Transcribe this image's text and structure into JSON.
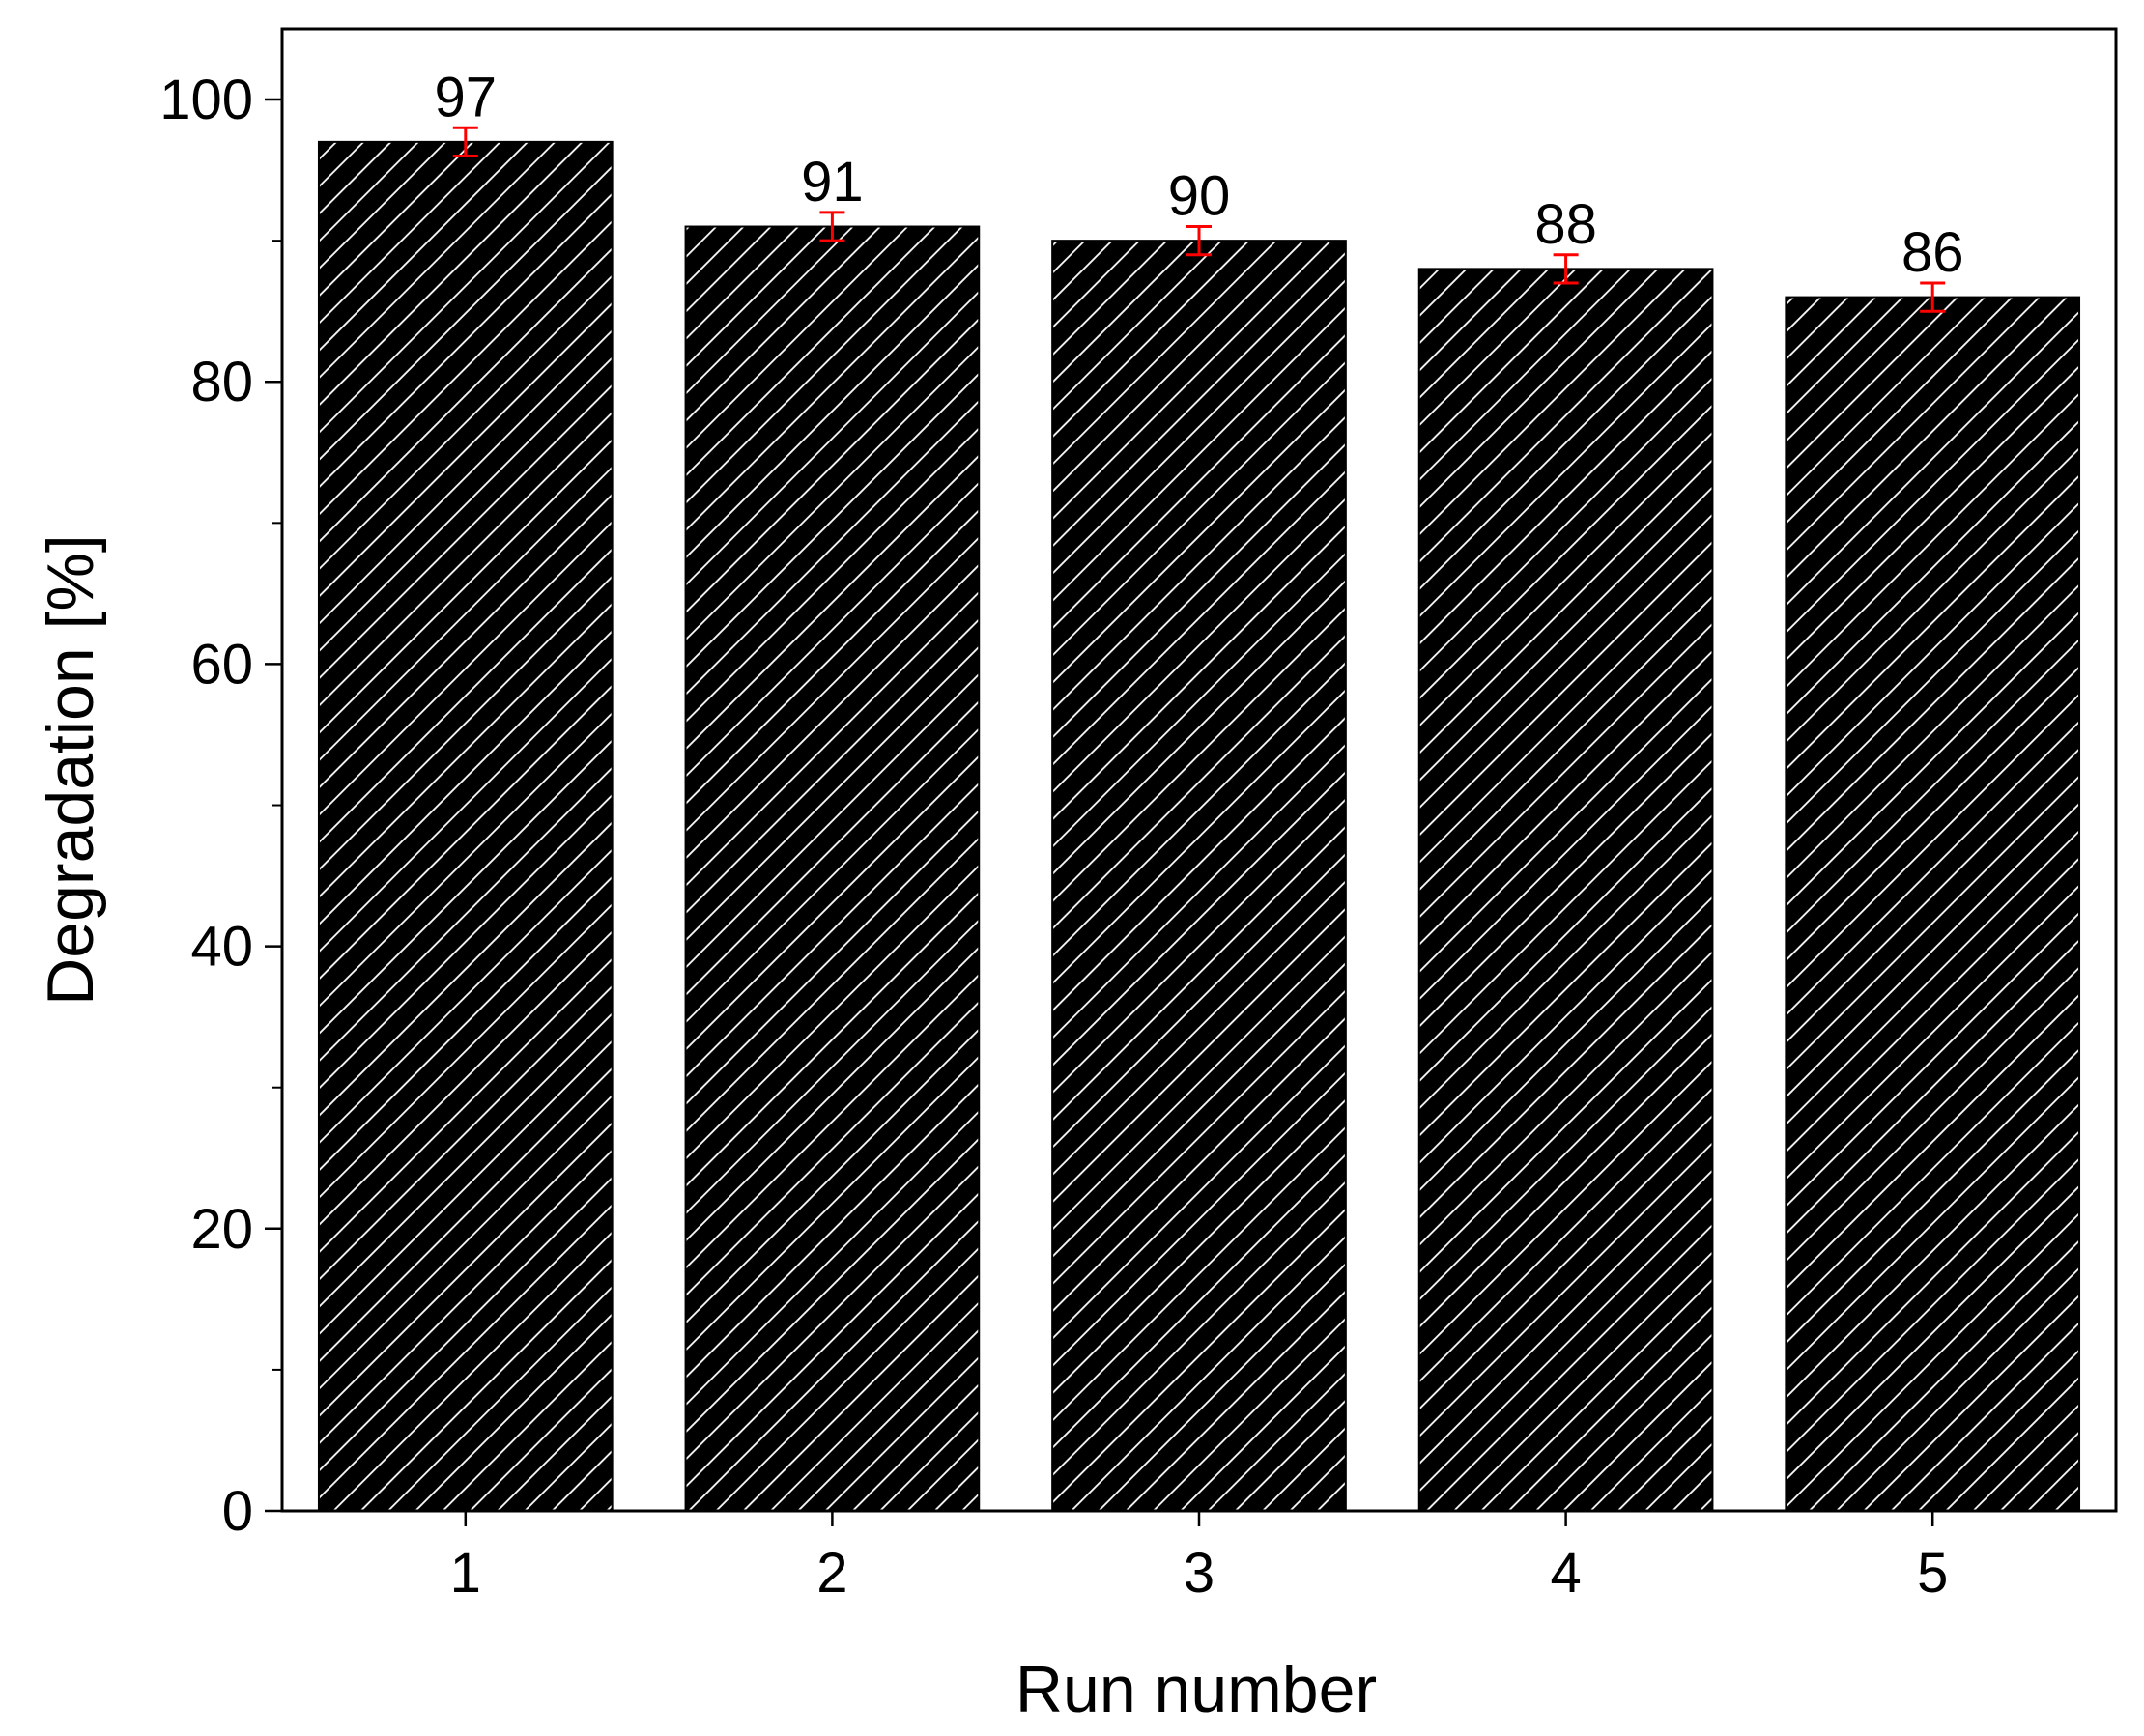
{
  "chart_data": {
    "type": "bar",
    "categories": [
      "1",
      "2",
      "3",
      "4",
      "5"
    ],
    "values": [
      97,
      91,
      90,
      88,
      86
    ],
    "error": [
      1,
      1,
      1,
      1,
      1
    ],
    "data_labels": [
      "97",
      "91",
      "90",
      "88",
      "86"
    ],
    "title": "",
    "xlabel": "Run number",
    "ylabel": "Degradation [%]",
    "ylim": [
      0,
      105
    ],
    "yticks": [
      0,
      20,
      40,
      60,
      80,
      100
    ],
    "yticks_minor": [
      10,
      30,
      50,
      70,
      90
    ],
    "ytick_labels": [
      "0",
      "20",
      "40",
      "60",
      "80",
      "100"
    ],
    "grid": false,
    "legend": "none",
    "bar_fill": "hatched",
    "colors": {
      "bar": "#000000",
      "hatch": "#ffffff",
      "error_bar": "#ff0000",
      "axis": "#000000"
    }
  }
}
